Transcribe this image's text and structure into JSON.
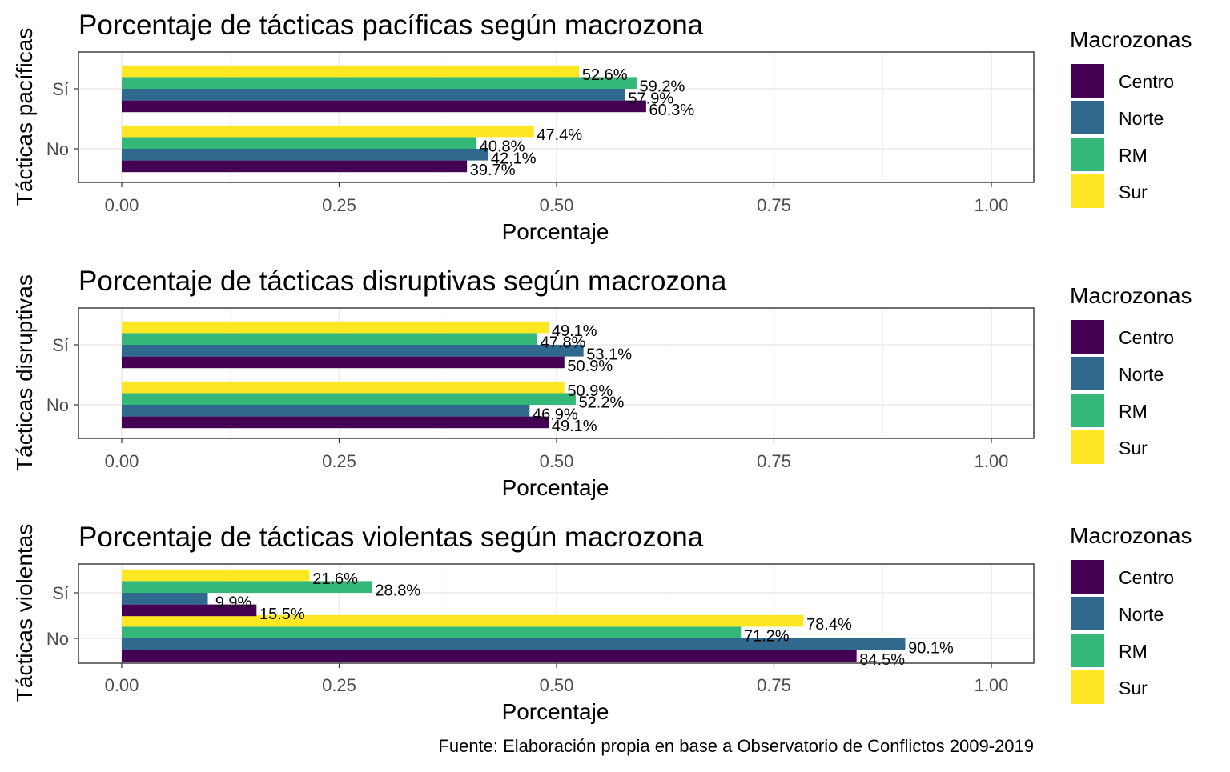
{
  "caption": "Fuente: Elaboración propia en base a Observatorio de Conflictos 2009-2019",
  "chart_data": [
    {
      "type": "bar",
      "orientation": "horizontal",
      "title": "Porcentaje de tácticas pacíficas según macrozona",
      "xlabel": "Porcentaje",
      "ylabel": "Tácticas pacíficas",
      "categories": [
        "No",
        "Sí"
      ],
      "xlim": [
        0,
        1
      ],
      "xticks": [
        "0.00",
        "0.25",
        "0.50",
        "0.75",
        "1.00"
      ],
      "grid": true,
      "legend": {
        "title": "Macrozonas",
        "position": "right"
      },
      "series": [
        {
          "name": "Centro",
          "color": "#440154",
          "values": [
            0.397,
            0.603
          ],
          "labels": [
            "39.7%",
            "60.3%"
          ]
        },
        {
          "name": "Norte",
          "color": "#31688E",
          "values": [
            0.421,
            0.579
          ],
          "labels": [
            "42.1%",
            "57.9%"
          ]
        },
        {
          "name": "RM",
          "color": "#35B779",
          "values": [
            0.408,
            0.592
          ],
          "labels": [
            "40.8%",
            "59.2%"
          ]
        },
        {
          "name": "Sur",
          "color": "#FDE725",
          "values": [
            0.474,
            0.526
          ],
          "labels": [
            "47.4%",
            "52.6%"
          ]
        }
      ]
    },
    {
      "type": "bar",
      "orientation": "horizontal",
      "title": "Porcentaje de tácticas disruptivas según macrozona",
      "xlabel": "Porcentaje",
      "ylabel": "Tácticas disruptivas",
      "categories": [
        "No",
        "Sí"
      ],
      "xlim": [
        0,
        1
      ],
      "xticks": [
        "0.00",
        "0.25",
        "0.50",
        "0.75",
        "1.00"
      ],
      "grid": true,
      "legend": {
        "title": "Macrozonas",
        "position": "right"
      },
      "series": [
        {
          "name": "Centro",
          "color": "#440154",
          "values": [
            0.491,
            0.509
          ],
          "labels": [
            "49.1%",
            "50.9%"
          ]
        },
        {
          "name": "Norte",
          "color": "#31688E",
          "values": [
            0.469,
            0.531
          ],
          "labels": [
            "46.9%",
            "53.1%"
          ]
        },
        {
          "name": "RM",
          "color": "#35B779",
          "values": [
            0.522,
            0.478
          ],
          "labels": [
            "52.2%",
            "47.8%"
          ]
        },
        {
          "name": "Sur",
          "color": "#FDE725",
          "values": [
            0.509,
            0.491
          ],
          "labels": [
            "50.9%",
            "49.1%"
          ]
        }
      ]
    },
    {
      "type": "bar",
      "orientation": "horizontal",
      "title": "Porcentaje de tácticas violentas según macrozona",
      "xlabel": "Porcentaje",
      "ylabel": "Tácticas violentas",
      "categories": [
        "No",
        "Sí"
      ],
      "xlim": [
        0,
        1
      ],
      "xticks": [
        "0.00",
        "0.25",
        "0.50",
        "0.75",
        "1.00"
      ],
      "grid": true,
      "legend": {
        "title": "Macrozonas",
        "position": "right"
      },
      "series": [
        {
          "name": "Centro",
          "color": "#440154",
          "values": [
            0.845,
            0.155
          ],
          "labels": [
            "84.5%",
            "15.5%"
          ]
        },
        {
          "name": "Norte",
          "color": "#31688E",
          "values": [
            0.901,
            0.099
          ],
          "labels": [
            "90.1%",
            "9.9%"
          ]
        },
        {
          "name": "RM",
          "color": "#35B779",
          "values": [
            0.712,
            0.288
          ],
          "labels": [
            "71.2%",
            "28.8%"
          ]
        },
        {
          "name": "Sur",
          "color": "#FDE725",
          "values": [
            0.784,
            0.216
          ],
          "labels": [
            "78.4%",
            "21.6%"
          ]
        }
      ]
    }
  ]
}
